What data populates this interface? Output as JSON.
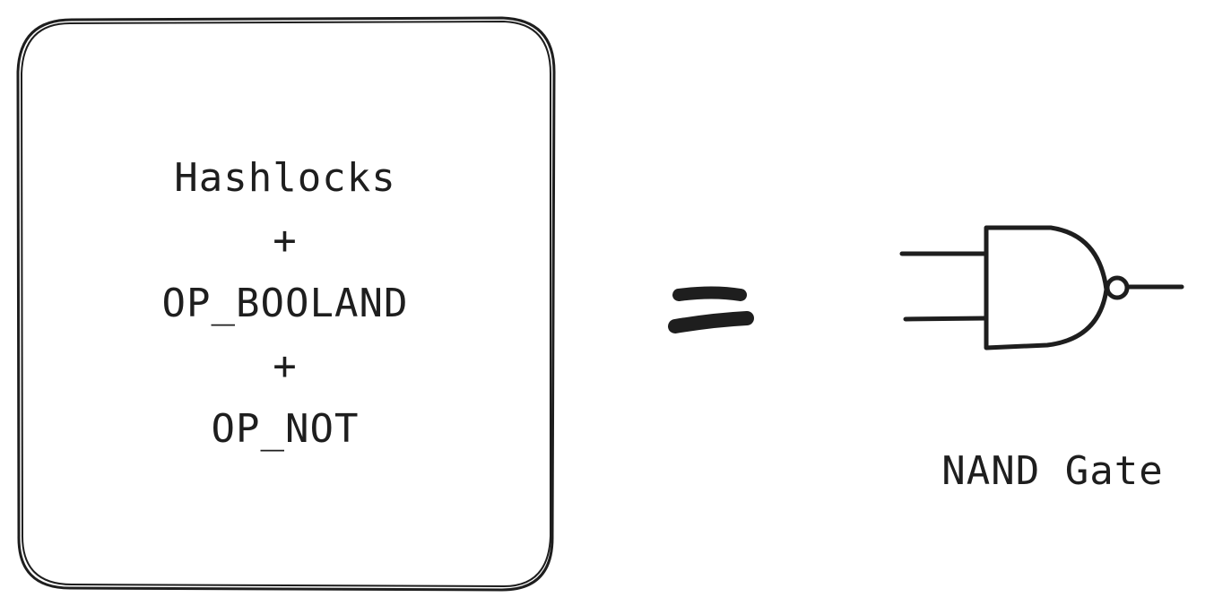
{
  "box": {
    "lines": [
      "Hashlocks",
      "+",
      "OP_BOOLAND",
      "+",
      "OP_NOT"
    ]
  },
  "gate": {
    "label": "NAND Gate",
    "icon": "nand-gate-icon"
  },
  "equals": {
    "icon": "equals-icon"
  },
  "colors": {
    "stroke": "#1e1e1e",
    "background": "#ffffff"
  }
}
